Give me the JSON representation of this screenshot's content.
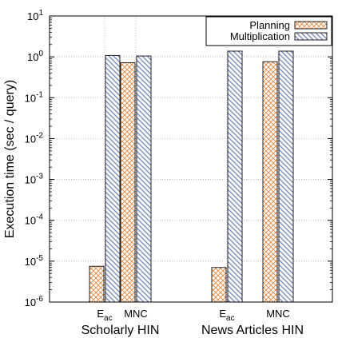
{
  "chart_data": {
    "type": "bar",
    "title": "",
    "ylabel": "Execution time (sec / query)",
    "yscale": "log",
    "ylim": [
      1e-06,
      10
    ],
    "y_ticks": [
      {
        "value": 10,
        "base": "10",
        "exp": "1"
      },
      {
        "value": 1,
        "base": "10",
        "exp": "0"
      },
      {
        "value": 0.1,
        "base": "10",
        "exp": "-1"
      },
      {
        "value": 0.01,
        "base": "10",
        "exp": "-2"
      },
      {
        "value": 0.001,
        "base": "10",
        "exp": "-3"
      },
      {
        "value": 0.0001,
        "base": "10",
        "exp": "-4"
      },
      {
        "value": 1e-05,
        "base": "10",
        "exp": "-5"
      },
      {
        "value": 1e-06,
        "base": "10",
        "exp": "-6"
      }
    ],
    "grid": true,
    "legend_position": "top-right",
    "groups": [
      {
        "label": "Scholarly HIN",
        "categories": [
          {
            "main": "E",
            "sub": "ac"
          },
          {
            "main": "MNC",
            "sub": ""
          }
        ]
      },
      {
        "label": "News Articles HIN",
        "categories": [
          {
            "main": "E",
            "sub": "ac"
          },
          {
            "main": "MNC",
            "sub": ""
          }
        ]
      }
    ],
    "series": [
      {
        "name": "Planning",
        "color": "#e8843a",
        "pattern": "crosshatch",
        "values": [
          [
            7.5e-06,
            0.72
          ],
          [
            7e-06,
            0.76
          ]
        ]
      },
      {
        "name": "Multiplication",
        "color": "#6a7fb8",
        "pattern": "diagonal",
        "values": [
          [
            1.08,
            1.05
          ],
          [
            1.38,
            1.38
          ]
        ]
      }
    ]
  }
}
